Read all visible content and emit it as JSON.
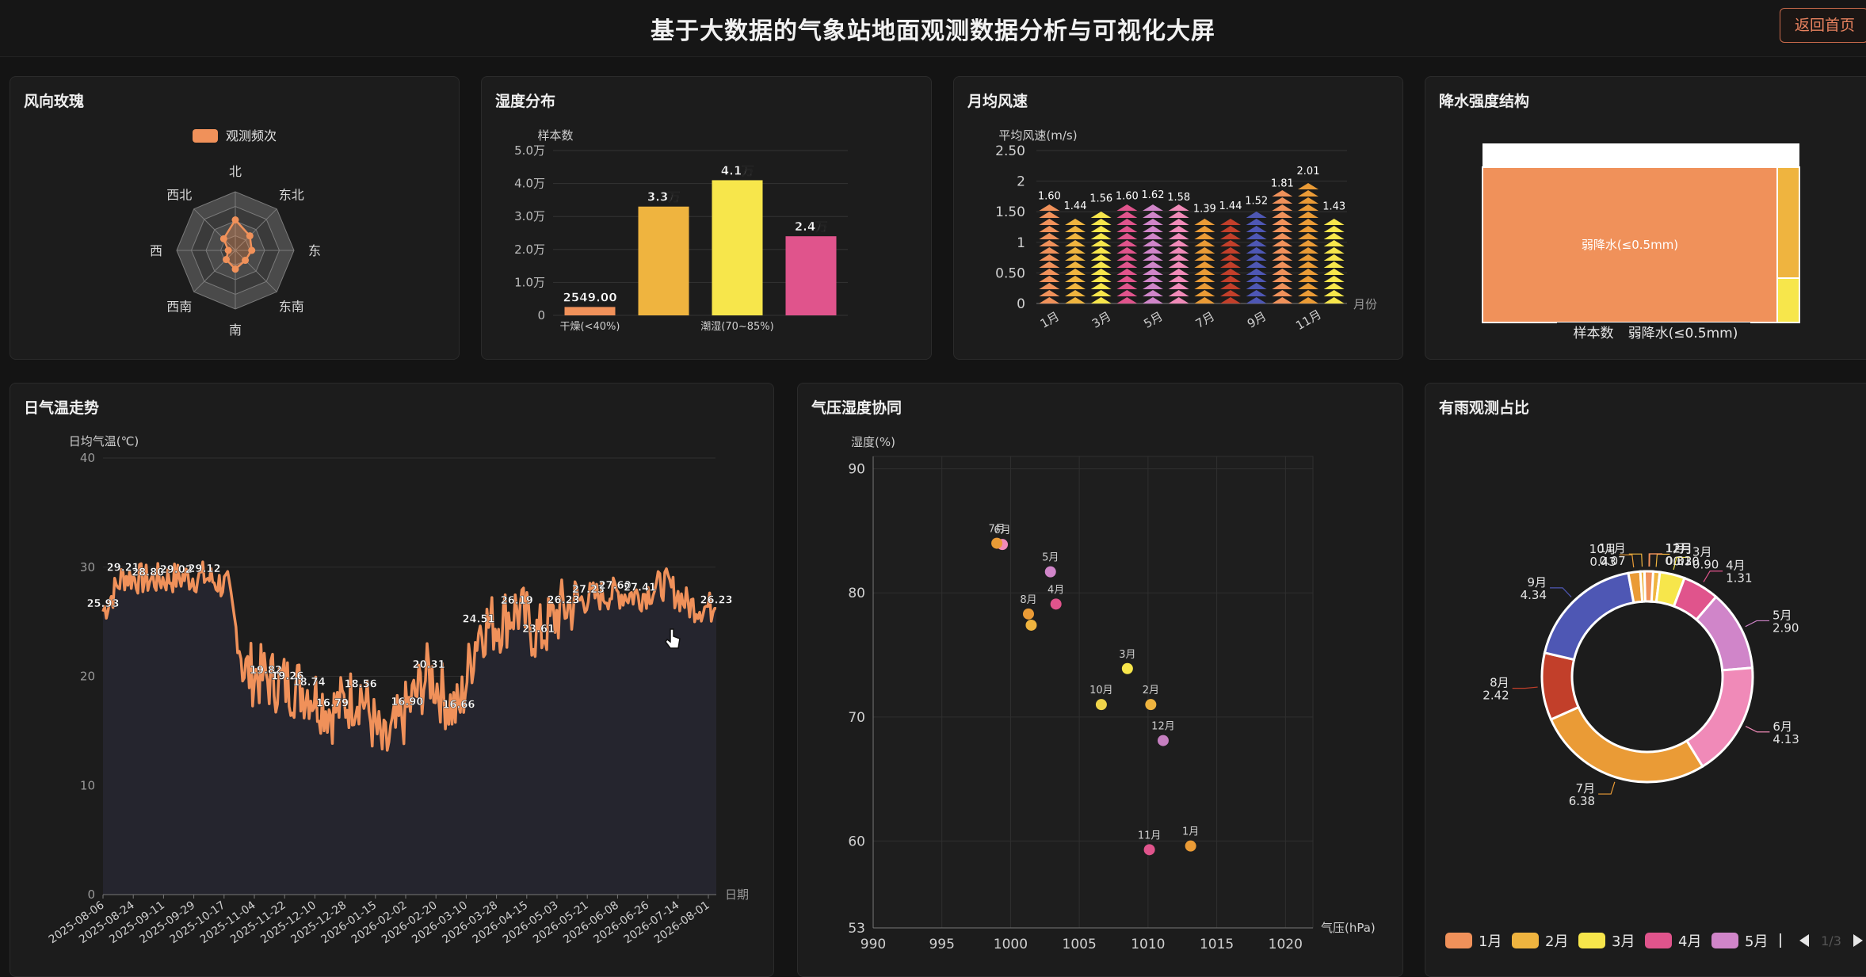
{
  "header": {
    "title": "基于大数据的气象站地面观测数据分析与可视化大屏",
    "back_label": "返回首页"
  },
  "colors": {
    "orange": "#f0915a",
    "gold": "#efb43f",
    "yellow": "#f7e64b",
    "pink": "#e0548c",
    "violet": "#d085c9",
    "blue": "#4e57b4",
    "red": "#c23f2a",
    "amber": "#ea9b36",
    "rose": "#f08ab8",
    "bg": "#1c1c1c"
  },
  "wind_rose": {
    "title": "风向玫瑰",
    "legend": "观测频次",
    "chart_data": {
      "type": "radar",
      "indicators": [
        "北",
        "西北",
        "西",
        "西南",
        "南",
        "东南",
        "东",
        "东北"
      ],
      "values": [
        0.52,
        0.28,
        0.12,
        0.22,
        0.32,
        0.24,
        0.28,
        0.35
      ]
    }
  },
  "humidity": {
    "title": "湿度分布",
    "chart_data": {
      "type": "bar",
      "ylabel": "样本数",
      "yticks": [
        "5.0万",
        "4.0万",
        "3.0万",
        "2.0万",
        "1.0万",
        "0"
      ],
      "ylim": [
        0,
        50000
      ],
      "categories": [
        "干燥(<40%)",
        "",
        "潮湿(70~85%)",
        ""
      ],
      "values": [
        2549,
        33000,
        41000,
        24000
      ],
      "labels": [
        "2549.00",
        "3.3万",
        "4.1万",
        "2.4万"
      ]
    }
  },
  "monthly_wind": {
    "title": "月均风速",
    "chart_data": {
      "type": "pictorial-bar",
      "ylabel": "平均风速(m/s)",
      "xlabel": "月份",
      "yticks": [
        "2.50",
        "2",
        "1.50",
        "1",
        "0.50",
        "0"
      ],
      "ylim": [
        0,
        2.5
      ],
      "categories": [
        "1月",
        "2月",
        "3月",
        "4月",
        "5月",
        "6月",
        "7月",
        "8月",
        "9月",
        "10月",
        "11月",
        "12月"
      ],
      "xtick_labels": [
        "1月",
        "3月",
        "5月",
        "7月",
        "9月",
        "11月"
      ],
      "values": [
        1.6,
        1.44,
        1.56,
        1.6,
        1.62,
        1.58,
        1.39,
        1.44,
        1.52,
        1.81,
        2.01,
        1.43
      ],
      "labels": [
        "1.60",
        "1.44",
        "1.56",
        "1.60",
        "1.62",
        "1.58",
        "1.39",
        "1.44",
        "1.52",
        "1.81",
        "2.01",
        "1.43"
      ]
    }
  },
  "precip": {
    "title": "降水强度结构",
    "chart_data": {
      "type": "treemap",
      "items": [
        {
          "name": "弱降水(≤0.5mm)",
          "share": 0.93
        },
        {
          "name": "",
          "share": 0.05
        },
        {
          "name": "",
          "share": 0.02
        }
      ],
      "breadcrumb": [
        "样本数",
        "弱降水(≤0.5mm)"
      ]
    }
  },
  "daily_temp": {
    "title": "日气温走势",
    "chart_data": {
      "type": "area",
      "ylabel": "日均气温(℃)",
      "xlabel": "日期",
      "yticks": [
        "40",
        "30",
        "20",
        "10",
        "0"
      ],
      "ylim": [
        0,
        40
      ],
      "xtick_labels": [
        "2025-08-06",
        "2025-08-24",
        "2025-09-11",
        "2025-09-29",
        "2025-10-17",
        "2025-11-04",
        "2025-11-22",
        "2025-12-10",
        "2025-12-28",
        "2026-01-15",
        "2026-02-02",
        "2026-02-20",
        "2026-03-10",
        "2026-03-28",
        "2026-04-15",
        "2026-05-03",
        "2026-05-21",
        "2026-06-08",
        "2026-06-26",
        "2026-07-14",
        "2026-08-01"
      ],
      "anchors": [
        [
          "2025-08-06",
          25.93
        ],
        [
          "2025-08-18",
          29.21
        ],
        [
          "2025-09-02",
          28.8
        ],
        [
          "2025-09-19",
          29.02
        ],
        [
          "2025-10-06",
          29.12
        ],
        [
          "2025-10-20",
          28.2
        ],
        [
          "2025-10-30",
          20.5
        ],
        [
          "2025-11-12",
          19.82
        ],
        [
          "2025-11-25",
          19.26
        ],
        [
          "2025-12-08",
          18.74
        ],
        [
          "2025-12-22",
          16.79
        ],
        [
          "2026-01-08",
          18.56
        ],
        [
          "2026-01-22",
          13.2
        ],
        [
          "2026-02-05",
          16.9
        ],
        [
          "2026-02-18",
          20.31
        ],
        [
          "2026-03-02",
          17.5
        ],
        [
          "2026-03-08",
          16.66
        ],
        [
          "2026-03-20",
          24.51
        ],
        [
          "2026-04-02",
          25.0
        ],
        [
          "2026-04-12",
          26.19
        ],
        [
          "2026-04-25",
          23.61
        ],
        [
          "2026-05-10",
          26.23
        ],
        [
          "2026-05-25",
          27.23
        ],
        [
          "2026-06-10",
          27.6
        ],
        [
          "2026-06-25",
          27.41
        ],
        [
          "2026-07-10",
          28.5
        ],
        [
          "2026-07-25",
          26.5
        ],
        [
          "2026-08-10",
          26.23
        ]
      ],
      "labels": [
        "25.93",
        "29.21",
        "28.80",
        "29.02",
        "29.12",
        "19.82",
        "19.26",
        "18.74",
        "16.79",
        "18.56",
        "16.90",
        "20.31",
        "16.66",
        "24.51",
        "26.19",
        "23.61",
        "26.23",
        "27.23",
        "27.60",
        "27.41",
        "26.23"
      ]
    }
  },
  "pressure_humidity": {
    "title": "气压湿度协同",
    "chart_data": {
      "type": "scatter",
      "xlabel": "气压(hPa)",
      "ylabel": "湿度(%)",
      "xlim": [
        990,
        1022
      ],
      "ylim": [
        53,
        91
      ],
      "xticks": [
        "990",
        "995",
        "1000",
        "1005",
        "1010",
        "1015",
        "1020"
      ],
      "yticks": [
        "90",
        "80",
        "70",
        "60",
        "53"
      ],
      "points": [
        {
          "name": "1月",
          "x": 1013.1,
          "y": 59.6,
          "c": "#ea9b36"
        },
        {
          "name": "2月",
          "x": 1010.2,
          "y": 71.0,
          "c": "#efb43f"
        },
        {
          "name": "3月",
          "x": 1008.5,
          "y": 73.9,
          "c": "#f7e64b"
        },
        {
          "name": "4月",
          "x": 1003.3,
          "y": 79.1,
          "c": "#e0548c"
        },
        {
          "name": "5月",
          "x": 1002.9,
          "y": 81.7,
          "c": "#d085c9"
        },
        {
          "name": "6月",
          "x": 999.4,
          "y": 83.9,
          "c": "#f08ab8"
        },
        {
          "name": "7月",
          "x": 999.0,
          "y": 84.0,
          "c": "#ea9b36"
        },
        {
          "name": "8月",
          "x": 1001.3,
          "y": 78.3,
          "c": "#ea9b36"
        },
        {
          "name": "",
          "x": 1001.5,
          "y": 77.4,
          "c": "#efb43f"
        },
        {
          "name": "10月",
          "x": 1006.6,
          "y": 71.0,
          "c": "#efd44a"
        },
        {
          "name": "11月",
          "x": 1010.1,
          "y": 59.3,
          "c": "#e0548c"
        },
        {
          "name": "12月",
          "x": 1011.1,
          "y": 68.1,
          "c": "#c57fc0"
        }
      ]
    }
  },
  "rain_share": {
    "title": "有雨观测占比",
    "chart_data": {
      "type": "pie",
      "slices": [
        {
          "name": "1月",
          "value": 0.02
        },
        {
          "name": "2月",
          "value": 0.3
        },
        {
          "name": "3月",
          "value": 0.9
        },
        {
          "name": "4月",
          "value": 1.31
        },
        {
          "name": "5月",
          "value": 2.9
        },
        {
          "name": "6月",
          "value": 4.13
        },
        {
          "name": "7月",
          "value": 6.38
        },
        {
          "name": "8月",
          "value": 2.42
        },
        {
          "name": "9月",
          "value": 4.34
        },
        {
          "name": "10月",
          "value": 0.43
        },
        {
          "name": "11月",
          "value": 0.07
        },
        {
          "name": "12月",
          "value": 0.31
        }
      ],
      "labels": [
        [
          "1月",
          "0.02"
        ],
        [
          "2月",
          "0.30"
        ],
        [
          "3月",
          "0.90"
        ],
        [
          "4月",
          "1.31"
        ],
        [
          "5月",
          "2.90"
        ],
        [
          "6月",
          "4.13"
        ],
        [
          "7月",
          "6.38"
        ],
        [
          "8月",
          "2.42"
        ],
        [
          "9月",
          "4.34"
        ],
        [
          "10月",
          "0.43"
        ],
        [
          "11月",
          "0.07"
        ],
        [
          "12月",
          "0.31"
        ]
      ],
      "legend": [
        "1月",
        "2月",
        "3月",
        "4月",
        "5月"
      ],
      "pager": "1/3"
    }
  }
}
